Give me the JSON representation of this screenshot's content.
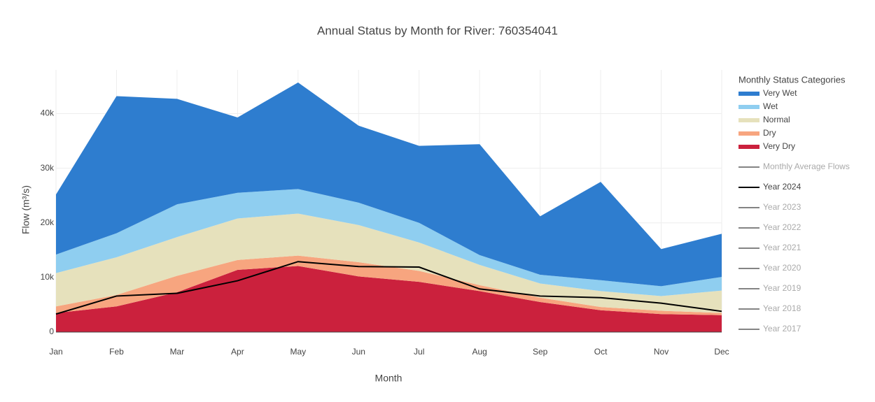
{
  "chart_data": {
    "type": "stacked_area",
    "title": "Annual Status by Month for River: 760354041",
    "x_label": "Month",
    "y_label": "Flow (m³/s)",
    "legend_title": "Monthly Status Categories",
    "categories": [
      "Jan",
      "Feb",
      "Mar",
      "Apr",
      "May",
      "Jun",
      "Jul",
      "Aug",
      "Sep",
      "Oct",
      "Nov",
      "Dec"
    ],
    "ylim": [
      0,
      48000
    ],
    "yticks": [
      0,
      {
        "value": 10000,
        "label": "10k"
      },
      {
        "value": 20000,
        "label": "20k"
      },
      {
        "value": 30000,
        "label": "30k"
      },
      {
        "value": 40000,
        "label": "40k"
      }
    ],
    "grid": true,
    "series": [
      {
        "name": "Very Wet",
        "color": "#2e7dcf",
        "values": [
          11000,
          25100,
          19300,
          13800,
          19500,
          14100,
          14100,
          20300,
          10700,
          18000,
          6800,
          7900
        ]
      },
      {
        "name": "Wet",
        "color": "#8fcef0",
        "values": [
          3400,
          4400,
          6000,
          4700,
          4500,
          4100,
          3600,
          1800,
          1600,
          2000,
          1800,
          2500
        ]
      },
      {
        "name": "Normal",
        "color": "#e6e1bc",
        "values": [
          6100,
          6900,
          7100,
          7600,
          7700,
          6800,
          5200,
          3700,
          2600,
          2900,
          2700,
          4100
        ]
      },
      {
        "name": "Dry",
        "color": "#f7a57f",
        "values": [
          1200,
          2100,
          3000,
          1800,
          1900,
          2600,
          2000,
          1100,
          800,
          600,
          600,
          400
        ]
      },
      {
        "name": "Very Dry",
        "color": "#cb213d",
        "values": [
          3500,
          4700,
          7300,
          11400,
          12100,
          10200,
          9200,
          7500,
          5500,
          4000,
          3300,
          3100
        ]
      }
    ],
    "lines": [
      {
        "name": "Monthly Average Flows",
        "color": "#777777",
        "visible": false
      },
      {
        "name": "Year 2024",
        "color": "#000000",
        "visible": true,
        "values": [
          3300,
          6600,
          7100,
          9400,
          12900,
          12000,
          11900,
          7900,
          6600,
          6300,
          5300,
          3800
        ]
      },
      {
        "name": "Year 2023",
        "color": "#777777",
        "visible": false
      },
      {
        "name": "Year 2022",
        "color": "#777777",
        "visible": false
      },
      {
        "name": "Year 2021",
        "color": "#777777",
        "visible": false
      },
      {
        "name": "Year 2020",
        "color": "#777777",
        "visible": false
      },
      {
        "name": "Year 2019",
        "color": "#777777",
        "visible": false
      },
      {
        "name": "Year 2018",
        "color": "#777777",
        "visible": false
      },
      {
        "name": "Year 2017",
        "color": "#777777",
        "visible": false
      }
    ]
  }
}
